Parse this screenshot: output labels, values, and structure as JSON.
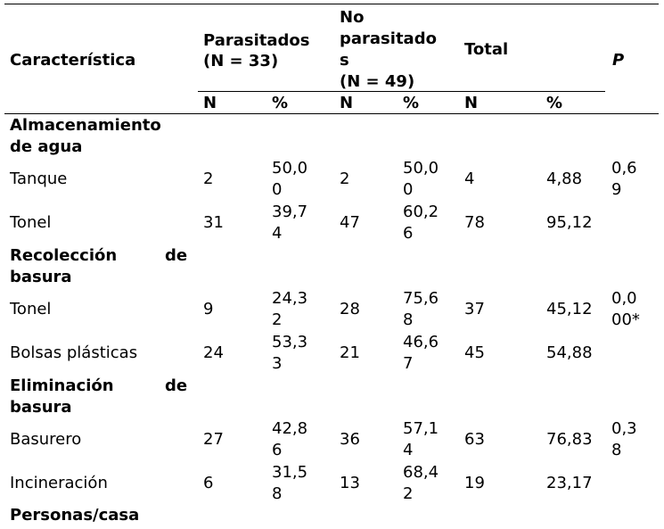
{
  "header": {
    "caracteristica": "Característica",
    "parasitados": "Parasitados",
    "parasitados_n": "(N = 33)",
    "no_parasitados_l1": "No",
    "no_parasitados_l2": "parasitado",
    "no_parasitados_l3": "s",
    "no_parasitados_n": "(N = 49)",
    "total": "Total",
    "p": "P",
    "sub": [
      "N",
      "%",
      "N",
      "%",
      "N",
      "%"
    ]
  },
  "sections": [
    {
      "title_l1": "Almacenamiento",
      "title_l2": "de agua",
      "rows": [
        {
          "label": "Tanque",
          "n1": "2",
          "p1_a": "50,0",
          "p1_b": "0",
          "n2": "2",
          "p2_a": "50,0",
          "p2_b": "0",
          "nt": "4",
          "pt": "4,88",
          "pv_a": "0,6",
          "pv_b": "9"
        },
        {
          "label": "Tonel",
          "n1": "31",
          "p1_a": "39,7",
          "p1_b": "4",
          "n2": "47",
          "p2_a": "60,2",
          "p2_b": "6",
          "nt": "78",
          "pt": "95,12",
          "pv_a": "",
          "pv_b": ""
        }
      ]
    },
    {
      "title_l1a": "Recolección",
      "title_l1b": "de",
      "title_l2": "basura",
      "rows": [
        {
          "label": "Tonel",
          "n1": "9",
          "p1_a": "24,3",
          "p1_b": "2",
          "n2": "28",
          "p2_a": "75,6",
          "p2_b": "8",
          "nt": "37",
          "pt": "45,12",
          "pv_a": "0,0",
          "pv_b": "00*"
        },
        {
          "label": "Bolsas plásticas",
          "n1": "24",
          "p1_a": "53,3",
          "p1_b": "3",
          "n2": "21",
          "p2_a": "46,6",
          "p2_b": "7",
          "nt": "45",
          "pt": "54,88",
          "pv_a": "",
          "pv_b": ""
        }
      ]
    },
    {
      "title_l1a": "Eliminación",
      "title_l1b": "de",
      "title_l2": "basura",
      "rows": [
        {
          "label": "Basurero",
          "n1": "27",
          "p1_a": "42,8",
          "p1_b": "6",
          "n2": "36",
          "p2_a": "57,1",
          "p2_b": "4",
          "nt": "63",
          "pt": "76,83",
          "pv_a": "0,3",
          "pv_b": "8"
        },
        {
          "label": "Incineración",
          "n1": "6",
          "p1_a": "31,5",
          "p1_b": "8",
          "n2": "13",
          "p2_a": "68,4",
          "p2_b": "2",
          "nt": "19",
          "pt": "23,17",
          "pv_a": "",
          "pv_b": ""
        }
      ]
    },
    {
      "title_l1": "Personas/casa"
    }
  ]
}
